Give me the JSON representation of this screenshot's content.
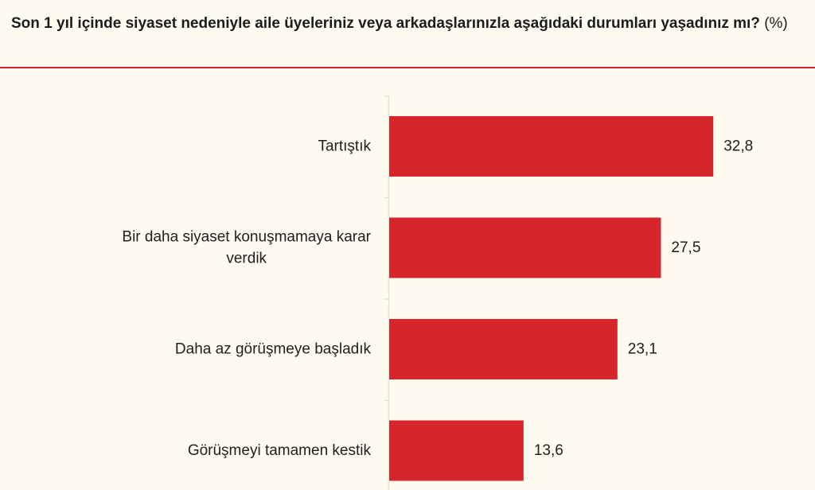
{
  "title": {
    "main": "Son 1 yıl içinde siyaset nedeniyle aile üyeleriniz veya arkadaşlarınızla aşağıdaki durumları yaşadınız mı?",
    "unit": "(%)"
  },
  "colors": {
    "background": "#fdfaef",
    "bar": "#d6262c",
    "rule": "#c8242a",
    "axis": "#e6e0d2",
    "text": "#1f1f1f"
  },
  "chart_data": {
    "type": "bar",
    "orientation": "horizontal",
    "categories": [
      "Tartıştık",
      "Bir daha siyaset konuşmamaya karar verdik",
      "Daha az görüşmeye başladık",
      "Görüşmeyi tamamen kestik"
    ],
    "category_lines": [
      [
        "Tartıştık"
      ],
      [
        "Bir daha siyaset konuşmamaya karar",
        "verdik"
      ],
      [
        "Daha az görüşmeye başladık"
      ],
      [
        "Görüşmeyi tamamen kestik"
      ]
    ],
    "values": [
      32.8,
      27.5,
      23.1,
      13.6
    ],
    "value_labels": [
      "32,8",
      "27,5",
      "23,1",
      "13,6"
    ],
    "xlim": [
      0,
      40
    ],
    "grid": false,
    "legend": "none",
    "title": "Son 1 yıl içinde siyaset nedeniyle aile üyeleriniz veya arkadaşlarınızla aşağıdaki durumları yaşadınız mı? (%)"
  }
}
